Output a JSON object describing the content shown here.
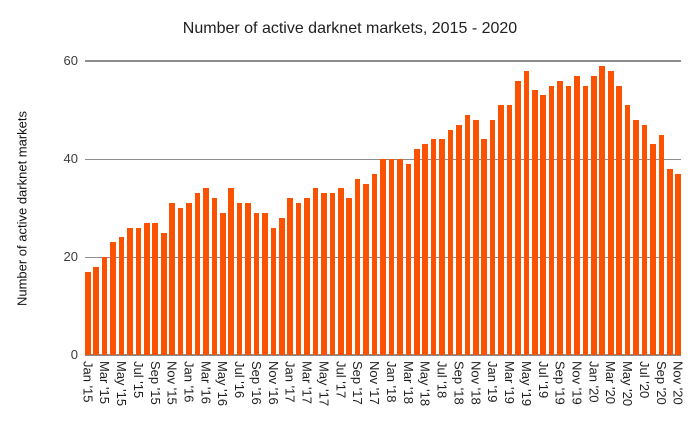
{
  "chart_data": {
    "type": "bar",
    "title": "Number of active darknet markets, 2015 - 2020",
    "ylabel": "Number of active darknet markets",
    "xlabel": "",
    "ylim": [
      0,
      60
    ],
    "y_ticks": [
      0,
      20,
      40,
      60
    ],
    "grid": true,
    "legend": "none",
    "bar_color": "#fa5200",
    "x_tick_step": 2,
    "categories": [
      "Jan '15",
      "Feb '15",
      "Mar '15",
      "Apr '15",
      "May '15",
      "Jun '15",
      "Jul '15",
      "Aug '15",
      "Sep '15",
      "Oct '15",
      "Nov '15",
      "Dec '15",
      "Jan '16",
      "Feb '16",
      "Mar '16",
      "Apr '16",
      "May '16",
      "Jun '16",
      "Jul '16",
      "Aug '16",
      "Sep '16",
      "Oct '16",
      "Nov '16",
      "Dec '16",
      "Jan '17",
      "Feb '17",
      "Mar '17",
      "Apr '17",
      "May '17",
      "Jun '17",
      "Jul '17",
      "Aug '17",
      "Sep '17",
      "Oct '17",
      "Nov '17",
      "Dec '17",
      "Jan '18",
      "Feb '18",
      "Mar '18",
      "Apr '18",
      "May '18",
      "Jun '18",
      "Jul '18",
      "Aug '18",
      "Sep '18",
      "Oct '18",
      "Nov '18",
      "Dec '18",
      "Jan '19",
      "Feb '19",
      "Mar '19",
      "Apr '19",
      "May '19",
      "Jun '19",
      "Jul '19",
      "Aug '19",
      "Sep '19",
      "Oct '19",
      "Nov '19",
      "Dec '19",
      "Jan '20",
      "Feb '20",
      "Mar '20",
      "Apr '20",
      "May '20",
      "Jun '20",
      "Jul '20",
      "Aug '20",
      "Sep '20",
      "Oct '20",
      "Nov '20"
    ],
    "values": [
      17,
      18,
      20,
      23,
      24,
      26,
      26,
      27,
      27,
      25,
      31,
      30,
      31,
      33,
      34,
      32,
      29,
      34,
      31,
      31,
      29,
      29,
      26,
      28,
      32,
      31,
      32,
      34,
      33,
      33,
      34,
      32,
      36,
      35,
      37,
      40,
      40,
      40,
      39,
      42,
      43,
      44,
      44,
      46,
      47,
      49,
      48,
      44,
      48,
      51,
      51,
      56,
      58,
      54,
      53,
      55,
      56,
      55,
      57,
      55,
      57,
      59,
      58,
      55,
      51,
      48,
      47,
      43,
      45,
      38,
      37
    ]
  }
}
